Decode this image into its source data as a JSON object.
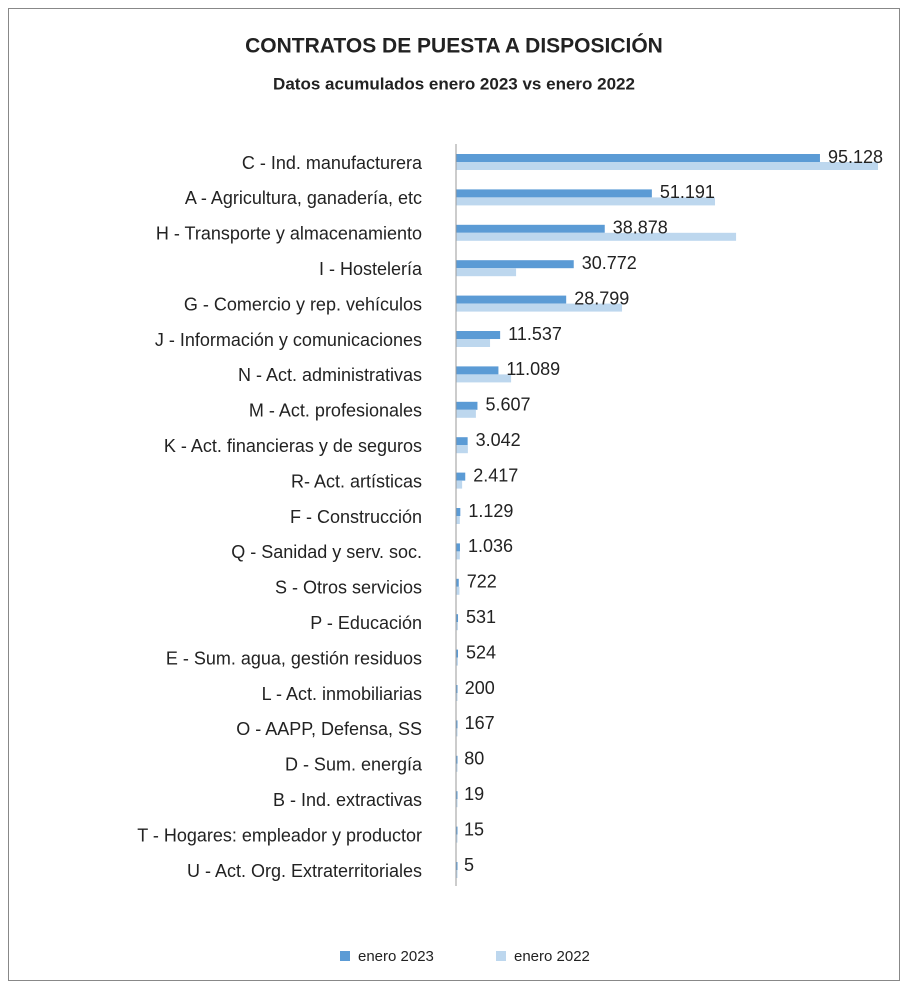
{
  "chart_data": {
    "type": "bar",
    "orientation": "horizontal",
    "title": "CONTRATOS DE PUESTA A DISPOSICIÓN",
    "subtitle": "Datos acumulados enero 2023 vs enero 2022",
    "categories": [
      "C - Ind. manufacturera",
      "A - Agricultura, ganadería, etc",
      "H - Transporte y almacenamiento",
      "I - Hostelería",
      "G - Comercio y rep. vehículos",
      "J - Información y comunicaciones",
      "N - Act. administrativas",
      "M - Act. profesionales",
      "K - Act. financieras y de seguros",
      "R-  Act. artísticas",
      "F - Construcción",
      "Q - Sanidad y serv. soc.",
      "S - Otros servicios",
      "P - Educación",
      "E - Sum. agua, gestión residuos",
      "L - Act. inmobiliarias",
      "O - AAPP, Defensa, SS",
      "D - Sum. energía ",
      "B - Ind. extractivas",
      "T - Hogares: empleador y productor",
      "U - Act. Org. Extraterritoriales"
    ],
    "series": [
      {
        "name": "enero 2023",
        "color": "#5b9bd5",
        "values": [
          95128,
          51191,
          38878,
          30772,
          28799,
          11537,
          11089,
          5607,
          3042,
          2417,
          1129,
          1036,
          722,
          531,
          524,
          200,
          167,
          80,
          19,
          15,
          5
        ],
        "value_labels": [
          "95.128",
          "51.191",
          "38.878",
          "30.772",
          "28.799",
          "11.537",
          "11.089",
          "5.607",
          "3.042",
          "2.417",
          "1.129",
          "1.036",
          "722",
          "531",
          "524",
          "200",
          "167",
          "80",
          "19",
          "15",
          "5"
        ]
      },
      {
        "name": "enero 2022",
        "color": "#bdd7ee",
        "values": [
          110300,
          67700,
          73200,
          15700,
          43400,
          8900,
          14400,
          5200,
          3100,
          1600,
          1000,
          1000,
          900,
          500,
          500,
          200,
          200,
          100,
          20,
          20,
          5
        ]
      }
    ],
    "xlim": [
      0,
      115000
    ],
    "legend": "bottom"
  }
}
